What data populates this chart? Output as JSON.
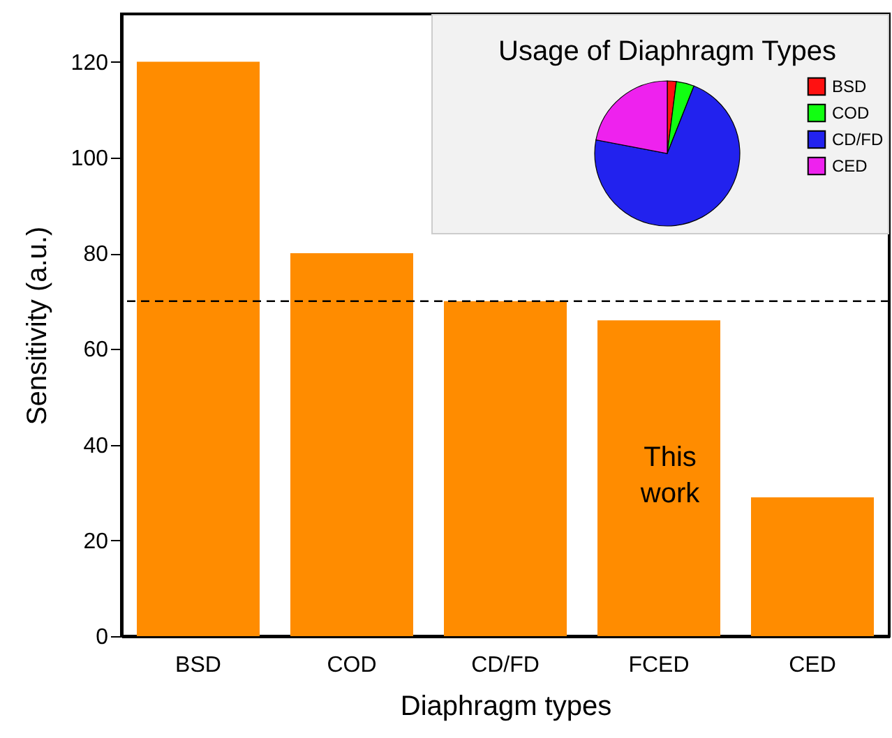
{
  "chart_data": [
    {
      "type": "bar",
      "xlabel": "Diaphragm types",
      "ylabel": "Sensitivity (a.u.)",
      "categories": [
        "BSD",
        "COD",
        "CD/FD",
        "FCED",
        "CED"
      ],
      "values": [
        120,
        80,
        70,
        66,
        29
      ],
      "color": "#ff8c00",
      "ylim": [
        0,
        130
      ],
      "yticks": [
        0,
        20,
        40,
        60,
        80,
        100,
        120
      ],
      "grid": false,
      "ref_lines": [
        {
          "axis": "y",
          "value": 70,
          "color": "#000000",
          "line_style": "dashed"
        }
      ],
      "annotations": [
        "This work"
      ]
    },
    {
      "type": "pie",
      "title": "Usage of Diaphragm Types",
      "categories": [
        "BSD",
        "COD",
        "CD/FD",
        "CED"
      ],
      "values": [
        2,
        4,
        72,
        22
      ],
      "colors": [
        "#ff1111",
        "#11ff11",
        "#2222ee",
        "#ee22ee"
      ],
      "legend": "right"
    }
  ]
}
